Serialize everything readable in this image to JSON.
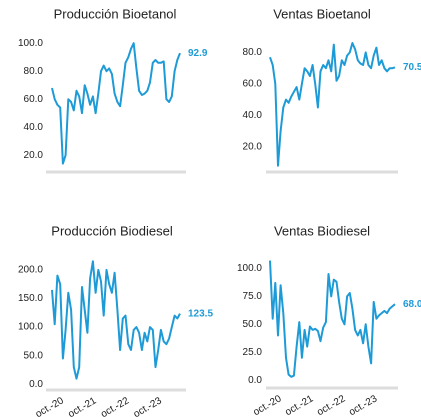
{
  "chart_data": [
    {
      "type": "line",
      "title": "Producción Bioetanol",
      "color": "#1e9bd7",
      "values": [
        68,
        60,
        56,
        54,
        14,
        20,
        60,
        58,
        52,
        66,
        62,
        50,
        70,
        64,
        56,
        62,
        50,
        64,
        80,
        84,
        80,
        82,
        78,
        64,
        58,
        55,
        70,
        86,
        90,
        96,
        100,
        82,
        66,
        63,
        64,
        66,
        72,
        86,
        88,
        86,
        86,
        87,
        60,
        58,
        62,
        80,
        88,
        92.9
      ],
      "ylim": [
        8,
        108
      ],
      "yticks": [
        {
          "value": 20,
          "label": "20.0"
        },
        {
          "value": 40,
          "label": "40.0"
        },
        {
          "value": 60,
          "label": "60.0"
        },
        {
          "value": 80,
          "label": "80.0"
        },
        {
          "value": 100,
          "label": "100.0"
        }
      ]
    },
    {
      "type": "line",
      "title": "Ventas Bioetanol",
      "color": "#1e9bd7",
      "values": [
        77,
        72,
        60,
        8,
        30,
        45,
        50,
        48,
        52,
        55,
        58,
        50,
        60,
        70,
        68,
        65,
        72,
        60,
        45,
        68,
        72,
        70,
        75,
        68,
        85,
        62,
        65,
        75,
        72,
        78,
        80,
        86,
        82,
        75,
        73,
        72,
        80,
        72,
        70,
        78,
        83,
        72,
        75,
        70,
        68,
        70,
        70,
        70.5
      ],
      "ylim": [
        4,
        93
      ],
      "yticks": [
        {
          "value": 20,
          "label": "20.0"
        },
        {
          "value": 40,
          "label": "40.0"
        },
        {
          "value": 60,
          "label": "60.0"
        },
        {
          "value": 80,
          "label": "80.0"
        }
      ]
    },
    {
      "type": "line",
      "title": "Producción Biodiesel",
      "color": "#1e9bd7",
      "categories": [
        null,
        null,
        null,
        null,
        "oct.-20",
        null,
        null,
        null,
        null,
        null,
        null,
        null,
        null,
        null,
        null,
        null,
        "oct.-21",
        null,
        null,
        null,
        null,
        null,
        null,
        null,
        null,
        null,
        null,
        null,
        "oct.-22",
        null,
        null,
        null,
        null,
        null,
        null,
        null,
        null,
        null,
        null,
        null,
        "oct.-23",
        null,
        null,
        null,
        null,
        null,
        null,
        null
      ],
      "values": [
        165,
        105,
        190,
        175,
        45,
        95,
        160,
        130,
        30,
        10,
        30,
        170,
        130,
        90,
        185,
        215,
        160,
        200,
        180,
        120,
        200,
        175,
        160,
        195,
        130,
        60,
        115,
        120,
        70,
        60,
        95,
        100,
        90,
        60,
        90,
        75,
        100,
        95,
        30,
        60,
        95,
        75,
        70,
        80,
        100,
        120,
        115,
        123.5
      ],
      "ylim": [
        -10,
        226
      ],
      "yticks": [
        {
          "value": 0,
          "label": "0.0"
        },
        {
          "value": 50,
          "label": "50.0"
        },
        {
          "value": 100,
          "label": "100.0"
        },
        {
          "value": 150,
          "label": "150.0"
        },
        {
          "value": 200,
          "label": "200.0"
        }
      ]
    },
    {
      "type": "line",
      "title": "Ventas Biodiesel",
      "color": "#1e9bd7",
      "categories": [
        null,
        null,
        null,
        null,
        "oct.-20",
        null,
        null,
        null,
        null,
        null,
        null,
        null,
        null,
        null,
        null,
        null,
        "oct.-21",
        null,
        null,
        null,
        null,
        null,
        null,
        null,
        null,
        null,
        null,
        null,
        "oct.-22",
        null,
        null,
        null,
        null,
        null,
        null,
        null,
        null,
        null,
        null,
        null,
        "oct.-23",
        null,
        null,
        null,
        null,
        null,
        null,
        null
      ],
      "values": [
        107,
        55,
        87,
        40,
        85,
        60,
        20,
        5,
        3,
        4,
        30,
        52,
        20,
        45,
        30,
        48,
        45,
        46,
        44,
        35,
        47,
        52,
        95,
        75,
        90,
        88,
        70,
        55,
        50,
        75,
        78,
        64,
        45,
        40,
        45,
        33,
        50,
        30,
        15,
        70,
        55,
        58,
        60,
        62,
        60,
        64,
        66,
        68
      ],
      "value_labels": [
        null,
        null,
        null,
        null,
        null,
        null,
        null,
        null,
        null,
        null,
        null,
        null,
        null,
        null,
        null,
        null,
        null,
        null,
        null,
        null,
        null,
        null,
        null,
        null,
        null,
        null,
        null,
        null,
        null,
        null,
        null,
        null,
        null,
        null,
        null,
        null,
        null,
        null,
        null,
        null,
        null,
        null,
        null,
        null,
        null,
        null,
        null,
        "68.0"
      ],
      "ylim": [
        -7,
        112
      ],
      "yticks": [
        {
          "value": 0,
          "label": "0.0"
        },
        {
          "value": 25,
          "label": "25.0"
        },
        {
          "value": 50,
          "label": "50.0"
        },
        {
          "value": 75,
          "label": "75.0"
        },
        {
          "value": 100,
          "label": "100.0"
        }
      ]
    }
  ]
}
